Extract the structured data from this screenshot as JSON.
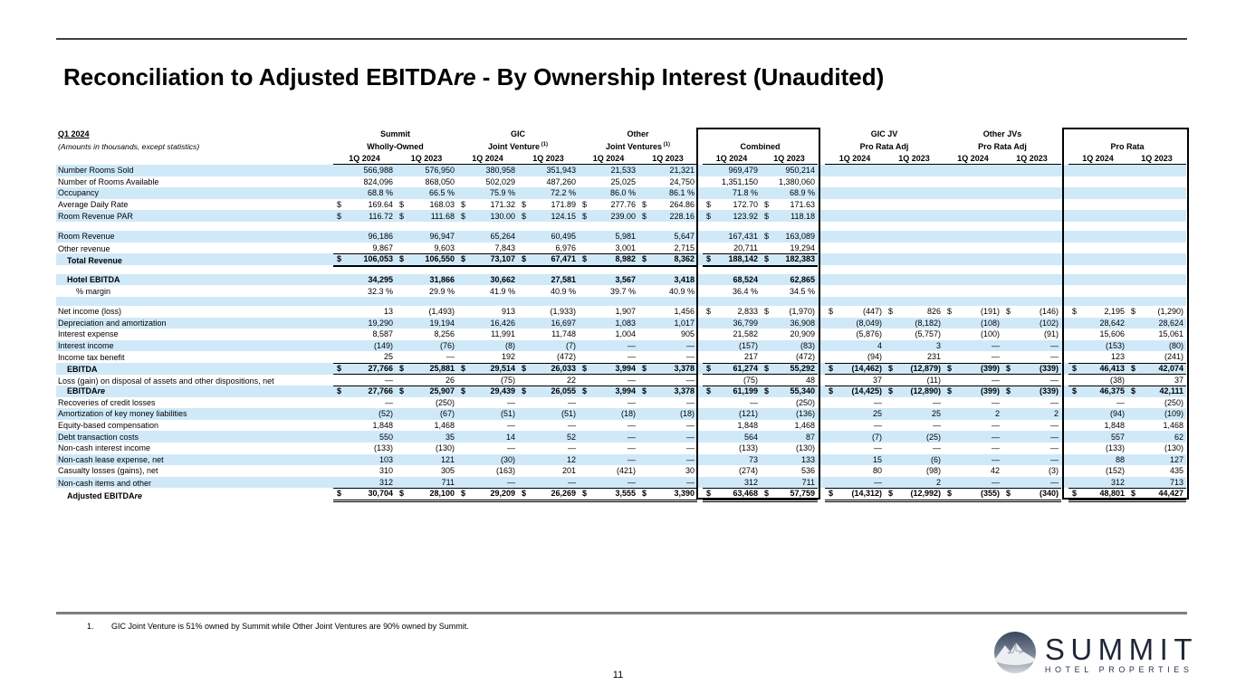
{
  "title": {
    "pre": "Reconciliation to Adjusted EBITDA",
    "italic": "re",
    "post": " - By Ownership Interest (Unaudited)"
  },
  "colors": {
    "stripe": "#d0e9f9",
    "logo_navy": "#1f2737"
  },
  "table": {
    "period_label": "Q1 2024",
    "subtitle": "(Amounts in thousands, except statistics)",
    "periods": [
      "1Q 2024",
      "1Q 2023"
    ],
    "col_groups": [
      {
        "top": "Summit",
        "bottom": "Wholly-Owned",
        "sup": ""
      },
      {
        "top": "GIC",
        "bottom": "Joint Venture",
        "sup": "(1)"
      },
      {
        "top": "Other",
        "bottom": "Joint Ventures",
        "sup": "(1)"
      },
      {
        "top": "",
        "bottom": "Combined",
        "sup": ""
      },
      {
        "top": "GIC JV",
        "bottom": "Pro Rata Adj",
        "sup": ""
      },
      {
        "top": "Other JVs",
        "bottom": "Pro Rata Adj",
        "sup": ""
      },
      {
        "top": "",
        "bottom": "Pro Rata",
        "sup": ""
      }
    ],
    "rows": [
      {
        "label": "Number Rooms Sold",
        "c": [
          "566,988",
          "576,950",
          "380,958",
          "351,943",
          "21,533",
          "21,321",
          "969,479",
          "950,214",
          "",
          "",
          "",
          "",
          "",
          ""
        ]
      },
      {
        "label": "Number of Rooms Available",
        "c": [
          "824,096",
          "868,050",
          "502,029",
          "487,260",
          "25,025",
          "24,750",
          "1,351,150",
          "1,380,060",
          "",
          "",
          "",
          "",
          "",
          ""
        ]
      },
      {
        "label": "Occupancy",
        "c": [
          "68.8 %",
          "66.5 %",
          "75.9 %",
          "72.2 %",
          "86.0 %",
          "86.1 %",
          "71.8 %",
          "68.9 %",
          "",
          "",
          "",
          "",
          "",
          ""
        ]
      },
      {
        "label": "Average Daily Rate",
        "d": [
          0,
          1,
          2,
          3,
          4,
          5,
          6,
          7
        ],
        "c": [
          "169.64",
          "168.03",
          "171.32",
          "171.89",
          "277.76",
          "264.86",
          "172.70",
          "171.63",
          "",
          "",
          "",
          "",
          "",
          ""
        ]
      },
      {
        "label": "Room Revenue PAR",
        "d": [
          0,
          1,
          2,
          3,
          4,
          5,
          6,
          7
        ],
        "c": [
          "116.72",
          "111.68",
          "130.00",
          "124.15",
          "239.00",
          "228.16",
          "123.92",
          "118.18",
          "",
          "",
          "",
          "",
          "",
          ""
        ]
      },
      {
        "gap": true
      },
      {
        "label": "Room Revenue",
        "d": [
          7
        ],
        "c": [
          "96,186",
          "96,947",
          "65,264",
          "60,495",
          "5,981",
          "5,647",
          "167,431",
          "163,089",
          "",
          "",
          "",
          "",
          "",
          ""
        ]
      },
      {
        "label": "Other revenue",
        "u": "u8",
        "c": [
          "9,867",
          "9,603",
          "7,843",
          "6,976",
          "3,001",
          "2,715",
          "20,711",
          "19,294",
          "",
          "",
          "",
          "",
          "",
          ""
        ]
      },
      {
        "label": "Total Revenue",
        "b": true,
        "ind": 1,
        "d": [
          0,
          1,
          2,
          3,
          4,
          5,
          6,
          7
        ],
        "u": "t8",
        "c": [
          "106,053",
          "106,550",
          "73,107",
          "67,471",
          "8,982",
          "8,362",
          "188,142",
          "182,383",
          "",
          "",
          "",
          "",
          "",
          ""
        ]
      },
      {
        "gap": true
      },
      {
        "label": "Hotel EBITDA",
        "b": true,
        "ind": 1,
        "c": [
          "34,295",
          "31,866",
          "30,662",
          "27,581",
          "3,567",
          "3,418",
          "68,524",
          "62,865",
          "",
          "",
          "",
          "",
          "",
          ""
        ]
      },
      {
        "label": "% margin",
        "ind": 2,
        "c": [
          "32.3 %",
          "29.9 %",
          "41.9 %",
          "40.9 %",
          "39.7 %",
          "40.9 %",
          "36.4 %",
          "34.5 %",
          "",
          "",
          "",
          "",
          "",
          ""
        ]
      },
      {
        "gap": true
      },
      {
        "label": "Net income (loss)",
        "d": [
          6,
          7,
          8,
          9,
          10,
          11,
          12,
          13
        ],
        "c": [
          "13",
          "(1,493)",
          "913",
          "(1,933)",
          "1,907",
          "1,456",
          "2,833",
          "(1,970)",
          "(447)",
          "826",
          "(191)",
          "(146)",
          "2,195",
          "(1,290)"
        ]
      },
      {
        "label": "Depreciation and amortization",
        "c": [
          "19,290",
          "19,194",
          "16,426",
          "16,697",
          "1,083",
          "1,017",
          "36,799",
          "36,908",
          "(8,049)",
          "(8,182)",
          "(108)",
          "(102)",
          "28,642",
          "28,624"
        ]
      },
      {
        "label": "Interest expense",
        "c": [
          "8,587",
          "8,256",
          "11,991",
          "11,748",
          "1,004",
          "905",
          "21,582",
          "20,909",
          "(5,876)",
          "(5,757)",
          "(100)",
          "(91)",
          "15,606",
          "15,061"
        ]
      },
      {
        "label": "Interest income",
        "c": [
          "(149)",
          "(76)",
          "(8)",
          "(7)",
          "—",
          "—",
          "(157)",
          "(83)",
          "4",
          "3",
          "—",
          "—",
          "(153)",
          "(80)"
        ]
      },
      {
        "label": "Income tax benefit",
        "u": "u14",
        "c": [
          "25",
          "—",
          "192",
          "(472)",
          "—",
          "—",
          "217",
          "(472)",
          "(94)",
          "231",
          "—",
          "—",
          "123",
          "(241)"
        ]
      },
      {
        "label": "EBITDA",
        "b": true,
        "ind": 1,
        "d": "all",
        "u": "u14",
        "c": [
          "27,766",
          "25,881",
          "29,514",
          "26,033",
          "3,994",
          "3,378",
          "61,274",
          "55,292",
          "(14,462)",
          "(12,879)",
          "(399)",
          "(339)",
          "46,413",
          "42,074"
        ]
      },
      {
        "label": "Loss (gain) on disposal of assets and other dispositions, net",
        "u": "u14",
        "c": [
          "—",
          "26",
          "(75)",
          "22",
          "—",
          "—",
          "(75)",
          "48",
          "37",
          "(11)",
          "—",
          "—",
          "(38)",
          "37"
        ]
      },
      {
        "label": "EBITDAre",
        "it": 2,
        "b": true,
        "ind": 1,
        "d": "all",
        "c": [
          "27,766",
          "25,907",
          "29,439",
          "26,055",
          "3,994",
          "3,378",
          "61,199",
          "55,340",
          "(14,425)",
          "(12,890)",
          "(399)",
          "(339)",
          "46,375",
          "42,111"
        ]
      },
      {
        "label": "Recoveries of credit losses",
        "c": [
          "—",
          "(250)",
          "—",
          "—",
          "—",
          "—",
          "—",
          "(250)",
          "—",
          "—",
          "—",
          "—",
          "—",
          "(250)"
        ]
      },
      {
        "label": "Amortization of key money liabilities",
        "c": [
          "(52)",
          "(67)",
          "(51)",
          "(51)",
          "(18)",
          "(18)",
          "(121)",
          "(136)",
          "25",
          "25",
          "2",
          "2",
          "(94)",
          "(109)"
        ]
      },
      {
        "label": "Equity-based compensation",
        "c": [
          "1,848",
          "1,468",
          "—",
          "—",
          "—",
          "—",
          "1,848",
          "1,468",
          "—",
          "—",
          "—",
          "—",
          "1,848",
          "1,468"
        ]
      },
      {
        "label": "Debt transaction costs",
        "c": [
          "550",
          "35",
          "14",
          "52",
          "—",
          "—",
          "564",
          "87",
          "(7)",
          "(25)",
          "—",
          "—",
          "557",
          "62"
        ]
      },
      {
        "label": "Non-cash interest income",
        "c": [
          "(133)",
          "(130)",
          "—",
          "—",
          "—",
          "—",
          "(133)",
          "(130)",
          "—",
          "—",
          "—",
          "—",
          "(133)",
          "(130)"
        ]
      },
      {
        "label": "Non-cash lease expense, net",
        "c": [
          "103",
          "121",
          "(30)",
          "12",
          "—",
          "—",
          "73",
          "133",
          "15",
          "(6)",
          "—",
          "—",
          "88",
          "127"
        ]
      },
      {
        "label": "Casualty losses (gains), net",
        "c": [
          "310",
          "305",
          "(163)",
          "201",
          "(421)",
          "30",
          "(274)",
          "536",
          "80",
          "(98)",
          "42",
          "(3)",
          "(152)",
          "435"
        ]
      },
      {
        "label": "Non-cash items and other",
        "u": "u14",
        "c": [
          "312",
          "711",
          "—",
          "—",
          "—",
          "—",
          "312",
          "711",
          "—",
          "2",
          "—",
          "—",
          "312",
          "713"
        ]
      },
      {
        "label": "Adjusted EBITDAre",
        "it": 2,
        "b": true,
        "ind": 1,
        "d": "all",
        "u": "dbl14",
        "c": [
          "30,704",
          "28,100",
          "29,209",
          "26,269",
          "3,555",
          "3,390",
          "63,468",
          "57,759",
          "(14,312)",
          "(12,992)",
          "(355)",
          "(340)",
          "48,801",
          "44,427"
        ]
      }
    ]
  },
  "footnote": {
    "number": "1.",
    "text": "GIC Joint Venture is 51% owned by Summit while Other Joint Ventures are 90% owned by Summit."
  },
  "page_number": "11",
  "logo": {
    "name": "SUMMIT",
    "tagline": "HOTEL PROPERTIES"
  }
}
